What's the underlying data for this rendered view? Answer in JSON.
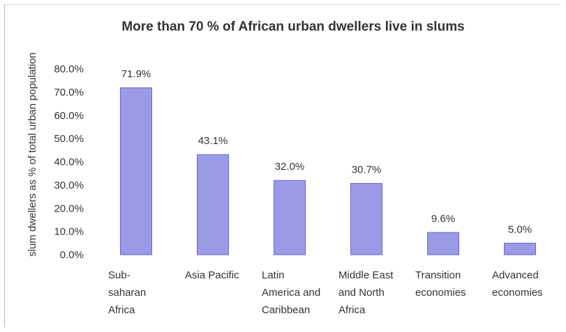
{
  "chart_data": {
    "type": "bar",
    "title": "More than 70 % of African urban dwellers live in slums",
    "xlabel": "",
    "ylabel": "slum dwellers as % of total urban population",
    "ylim": [
      0,
      80
    ],
    "yticks": [
      "0.0%",
      "10.0%",
      "20.0%",
      "30.0%",
      "40.0%",
      "50.0%",
      "60.0%",
      "70.0%",
      "80.0%"
    ],
    "grid": false,
    "bar_color": "#9a9ae6",
    "categories": [
      [
        "Sub-",
        "saharan",
        "Africa"
      ],
      [
        "Asia Pacific"
      ],
      [
        "Latin",
        "America and",
        "Caribbean"
      ],
      [
        "Middle East",
        "and North",
        "Africa"
      ],
      [
        "Transition",
        "economies"
      ],
      [
        "Advanced",
        "economies"
      ]
    ],
    "values": [
      71.9,
      43.1,
      32.0,
      30.7,
      9.6,
      5.0
    ],
    "data_labels": [
      "71.9%",
      "43.1%",
      "32.0%",
      "30.7%",
      "9.6%",
      "5.0%"
    ]
  }
}
